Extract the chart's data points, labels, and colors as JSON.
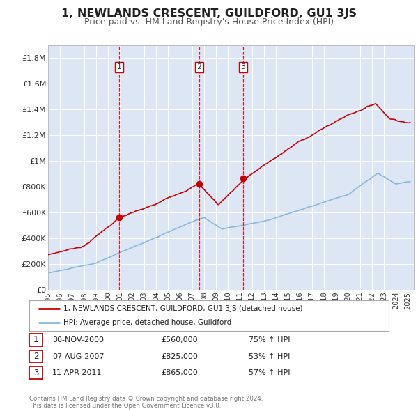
{
  "title": "1, NEWLANDS CRESCENT, GUILDFORD, GU1 3JS",
  "subtitle": "Price paid vs. HM Land Registry's House Price Index (HPI)",
  "title_fontsize": 11.5,
  "subtitle_fontsize": 9,
  "background_color": "#ffffff",
  "plot_bg_color": "#dce6f5",
  "grid_color": "#ffffff",
  "ylim": [
    0,
    1900000
  ],
  "xlim_start": 1995.0,
  "xlim_end": 2025.5,
  "yticks": [
    0,
    200000,
    400000,
    600000,
    800000,
    1000000,
    1200000,
    1400000,
    1600000,
    1800000
  ],
  "ytick_labels": [
    "£0",
    "£200K",
    "£400K",
    "£600K",
    "£800K",
    "£1M",
    "£1.2M",
    "£1.4M",
    "£1.6M",
    "£1.8M"
  ],
  "sale_color": "#cc0000",
  "hpi_color": "#88b8dd",
  "sale_linewidth": 1.2,
  "hpi_linewidth": 1.2,
  "transactions": [
    {
      "num": 1,
      "date_dec": 2000.92,
      "price": 560000,
      "date_str": "30-NOV-2000",
      "hpi_pct": "75%"
    },
    {
      "num": 2,
      "date_dec": 2007.6,
      "price": 825000,
      "date_str": "07-AUG-2007",
      "hpi_pct": "53%"
    },
    {
      "num": 3,
      "date_dec": 2011.27,
      "price": 865000,
      "date_str": "11-APR-2011",
      "hpi_pct": "57%"
    }
  ],
  "legend_label_sale": "1, NEWLANDS CRESCENT, GUILDFORD, GU1 3JS (detached house)",
  "legend_label_hpi": "HPI: Average price, detached house, Guildford",
  "footer_text": "Contains HM Land Registry data © Crown copyright and database right 2024.\nThis data is licensed under the Open Government Licence v3.0.",
  "xtick_years": [
    1995,
    1996,
    1997,
    1998,
    1999,
    2000,
    2001,
    2002,
    2003,
    2004,
    2005,
    2006,
    2007,
    2008,
    2009,
    2010,
    2011,
    2012,
    2013,
    2014,
    2015,
    2016,
    2017,
    2018,
    2019,
    2020,
    2021,
    2022,
    2023,
    2024,
    2025
  ]
}
